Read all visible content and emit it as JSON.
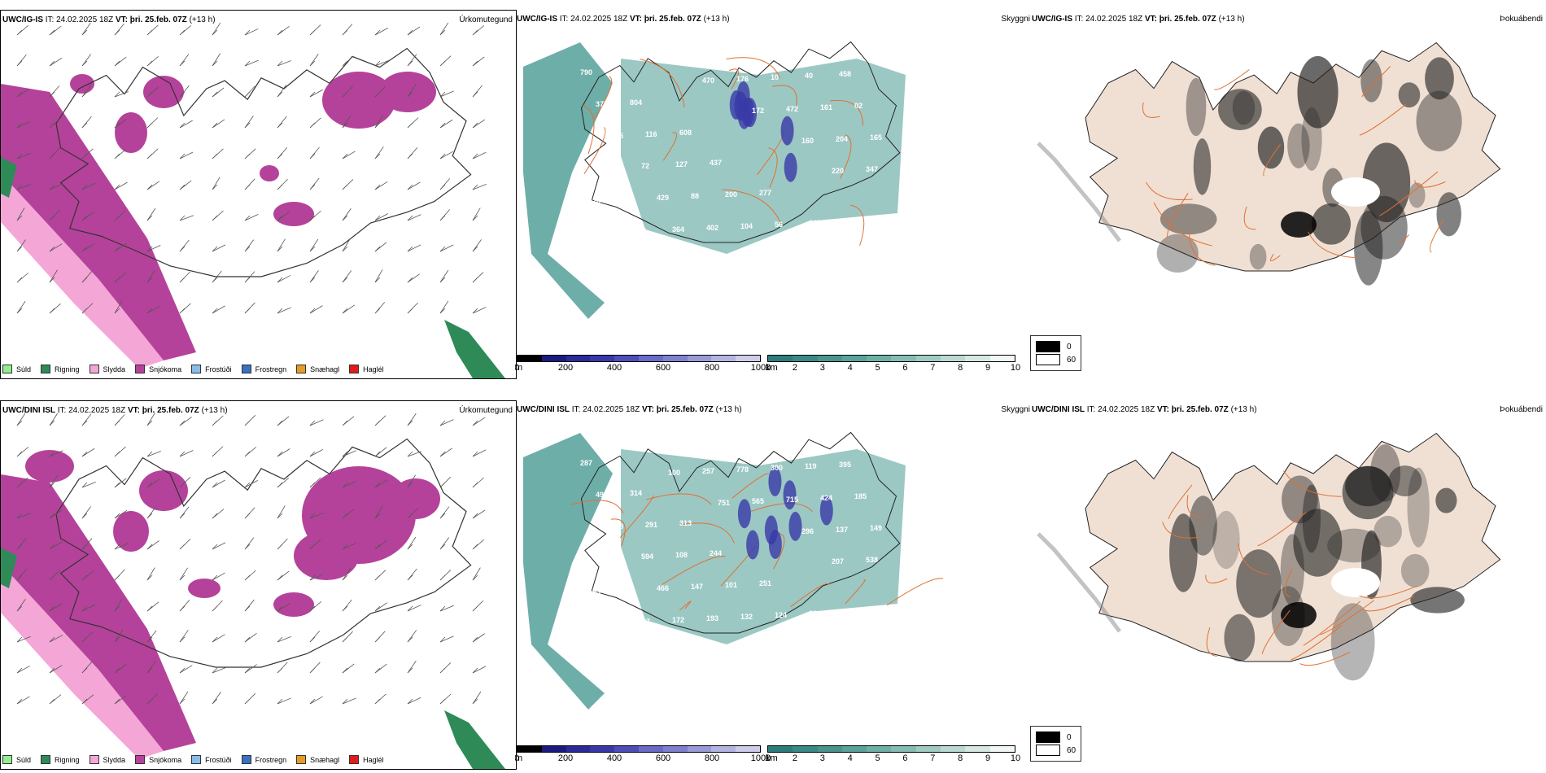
{
  "rows": [
    {
      "model": "UWC/IG-IS",
      "it_label": "IT:",
      "it": "24.02.2025 18Z",
      "vt_label": "VT:",
      "vt": "þri. 25.feb. 07Z",
      "lead": "(+13 h)",
      "cloud_labels": [
        "790",
        "804",
        "608",
        "437",
        "277",
        "368",
        "458",
        "375",
        "116",
        "127",
        "200",
        "56",
        "40",
        "02",
        "135",
        "72",
        "88",
        "104",
        "10",
        "161",
        "165",
        "444",
        "429",
        "402",
        "176",
        "472",
        "204",
        "347",
        "445",
        "364",
        "470",
        "172",
        "160",
        "220",
        "426",
        "57"
      ]
    },
    {
      "model": "UWC/DINI ISL",
      "it_label": "IT:",
      "it": "24.02.2025 18Z",
      "vt_label": "VT:",
      "vt": "þri. 25.feb. 07Z",
      "lead": "(+13 h)",
      "cloud_labels": [
        "287",
        "314",
        "313",
        "244",
        "251",
        "394",
        "395",
        "494",
        "291",
        "108",
        "101",
        "124",
        "119",
        "185",
        "868",
        "594",
        "147",
        "132",
        "300",
        "424",
        "149",
        "189",
        "466",
        "193",
        "778",
        "715",
        "137",
        "538",
        "157",
        "172",
        "257",
        "565",
        "296",
        "207",
        "195",
        "227",
        "100",
        "751"
      ]
    }
  ],
  "panels": {
    "precip_title": "Úrkomutegund",
    "cloud_title": "Skyggni",
    "frost_title": "Þokuábendi"
  },
  "precip_legend": [
    {
      "label": "Súld",
      "color": "#90ee90"
    },
    {
      "label": "Rigning",
      "color": "#2e8b57"
    },
    {
      "label": "Slydda",
      "color": "#f4a6d7"
    },
    {
      "label": "Snjókoma",
      "color": "#b5429a"
    },
    {
      "label": "Frostúði",
      "color": "#87bde8"
    },
    {
      "label": "Frostregn",
      "color": "#3a6fc2"
    },
    {
      "label": "Snæhagl",
      "color": "#e69c24"
    },
    {
      "label": "Haglél",
      "color": "#e31a1c"
    }
  ],
  "cloudbase_scale": {
    "unit": "m",
    "ticks": [
      "0",
      "200",
      "400",
      "600",
      "800",
      "1000"
    ],
    "colors": [
      "#000000",
      "#1a1a80",
      "#2a2a9a",
      "#3838aa",
      "#4e4eba",
      "#6a6ac8",
      "#8080d0",
      "#9a9ad8",
      "#b4b4e0",
      "#cdcdea"
    ]
  },
  "visibility_scale": {
    "unit": "km",
    "ticks": [
      "1",
      "2",
      "3",
      "4",
      "5",
      "6",
      "7",
      "8",
      "9",
      "10"
    ],
    "colors": [
      "#2e7d7d",
      "#3a8a86",
      "#4a968e",
      "#5aa399",
      "#6fb0a5",
      "#86bdb3",
      "#a0cbc2",
      "#bbd9d2",
      "#d6e8e3",
      "#f0f7f5"
    ]
  },
  "frost_legend": [
    {
      "label": "0",
      "color": "#000000"
    },
    {
      "label": "60",
      "color": "#ffffff"
    }
  ],
  "colors": {
    "snow": "#b5429a",
    "sleet": "#f4a6d7",
    "rain": "#2e8b57",
    "vis": "#4a9a94",
    "base": "#3a3aa8",
    "land": "#f0e0d4",
    "roads": "#e07030"
  }
}
